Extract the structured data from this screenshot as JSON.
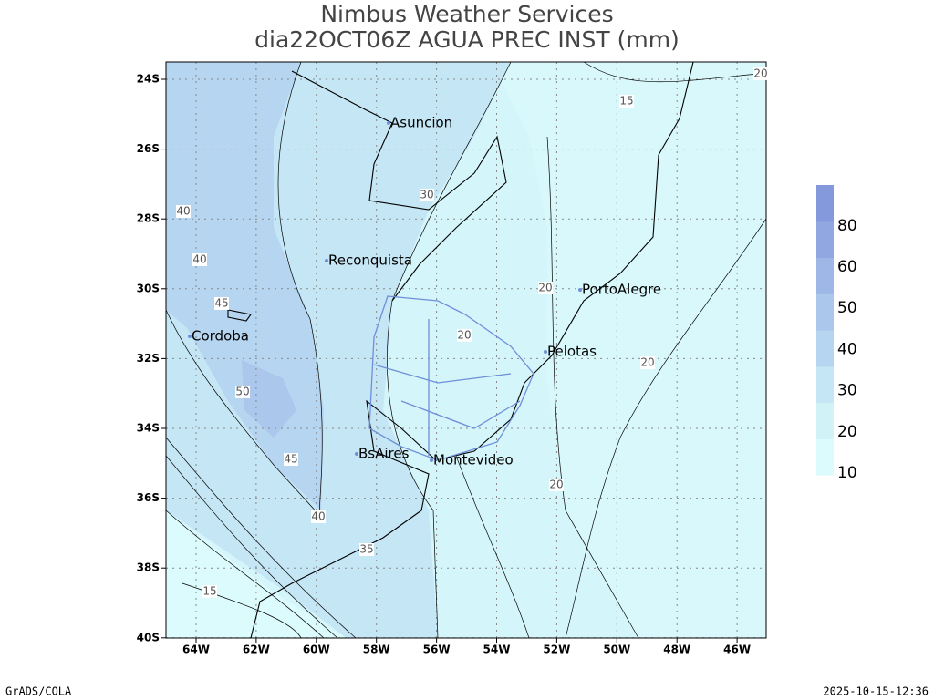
{
  "header": {
    "title": "Nimbus Weather Services",
    "subtitle": "dia22OCT06Z AGUA PREC INST (mm)"
  },
  "map": {
    "lat_labels": [
      "24S",
      "26S",
      "28S",
      "30S",
      "32S",
      "34S",
      "36S",
      "38S",
      "40S"
    ],
    "lon_labels": [
      "64W",
      "62W",
      "60W",
      "58W",
      "56W",
      "54W",
      "52W",
      "50W",
      "48W",
      "46W"
    ],
    "cities": [
      "Asuncion",
      "Reconquista",
      "PortoAlegre",
      "Cordoba",
      "Pelotas",
      "BsAires",
      "Montevideo"
    ],
    "contour_labels": [
      20,
      15,
      30,
      40,
      40,
      45,
      20,
      20,
      20,
      50,
      45,
      20,
      40,
      35,
      15
    ]
  },
  "colorbar": {
    "labels": [
      10,
      20,
      30,
      40,
      50,
      60,
      80
    ],
    "colors": [
      "#dcfbfd",
      "#d1f3f8",
      "#c5e6f5",
      "#b6d5f0",
      "#abc7ec",
      "#9fb7e7",
      "#91a7e1",
      "#8399dc"
    ]
  },
  "footer": {
    "left": "GrADS/COLA",
    "right": "2025-10-15-12:36"
  }
}
